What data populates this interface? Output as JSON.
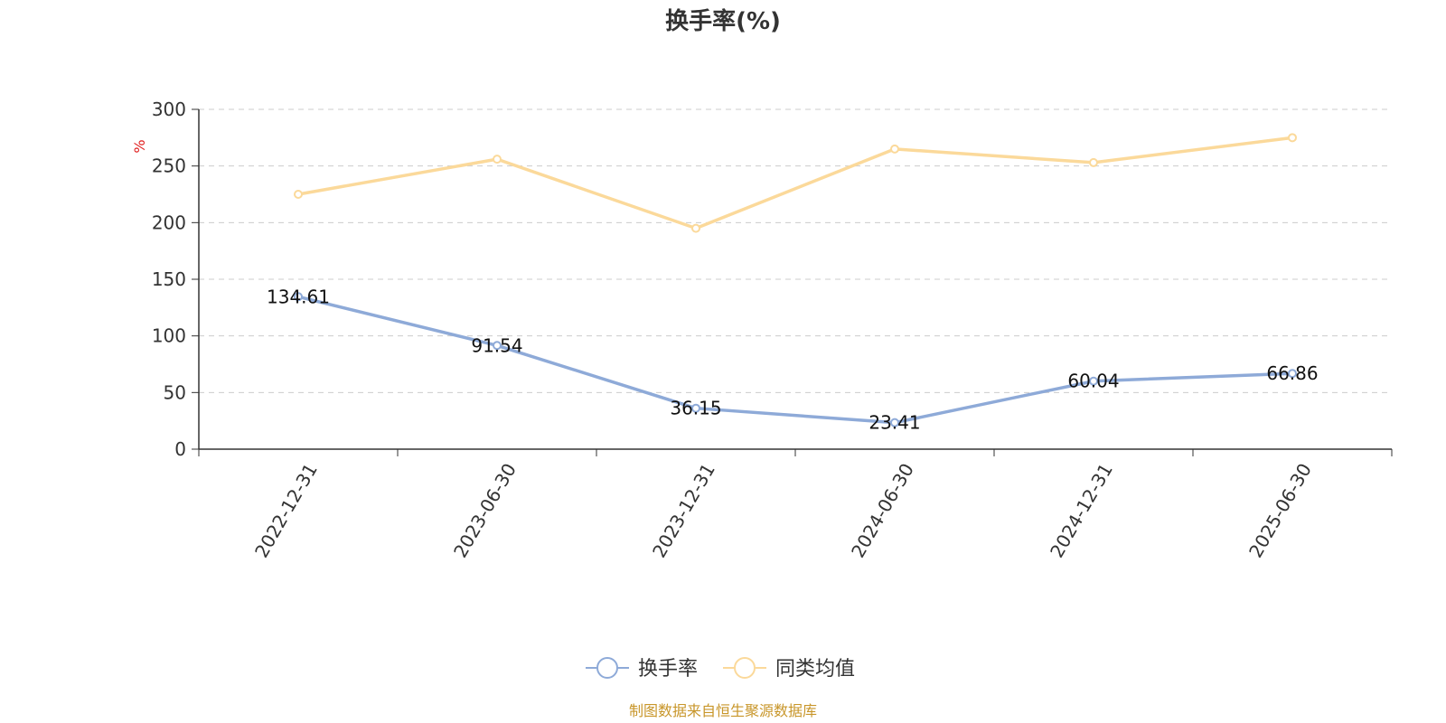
{
  "chart_data": {
    "type": "line",
    "title": "换手率(%)",
    "ylabel": "%",
    "xlabel": "",
    "categories": [
      "2022-12-31",
      "2023-06-30",
      "2023-12-31",
      "2024-06-30",
      "2024-12-31",
      "2025-06-30"
    ],
    "ylim": [
      0,
      300
    ],
    "yticks": [
      0,
      50,
      100,
      150,
      200,
      250,
      300
    ],
    "grid": true,
    "legend_position": "bottom",
    "series": [
      {
        "name": "换手率",
        "color": "#8eaad8",
        "values": [
          134.61,
          91.54,
          36.15,
          23.41,
          60.04,
          66.86
        ],
        "labels": [
          "134.61",
          "91.54",
          "36.15",
          "23.41",
          "60.04",
          "66.86"
        ]
      },
      {
        "name": "同类均值",
        "color": "#fbd99a",
        "values": [
          225,
          256,
          195,
          265,
          253,
          275
        ]
      }
    ]
  },
  "footer": {
    "source": "制图数据来自恒生聚源数据库"
  }
}
